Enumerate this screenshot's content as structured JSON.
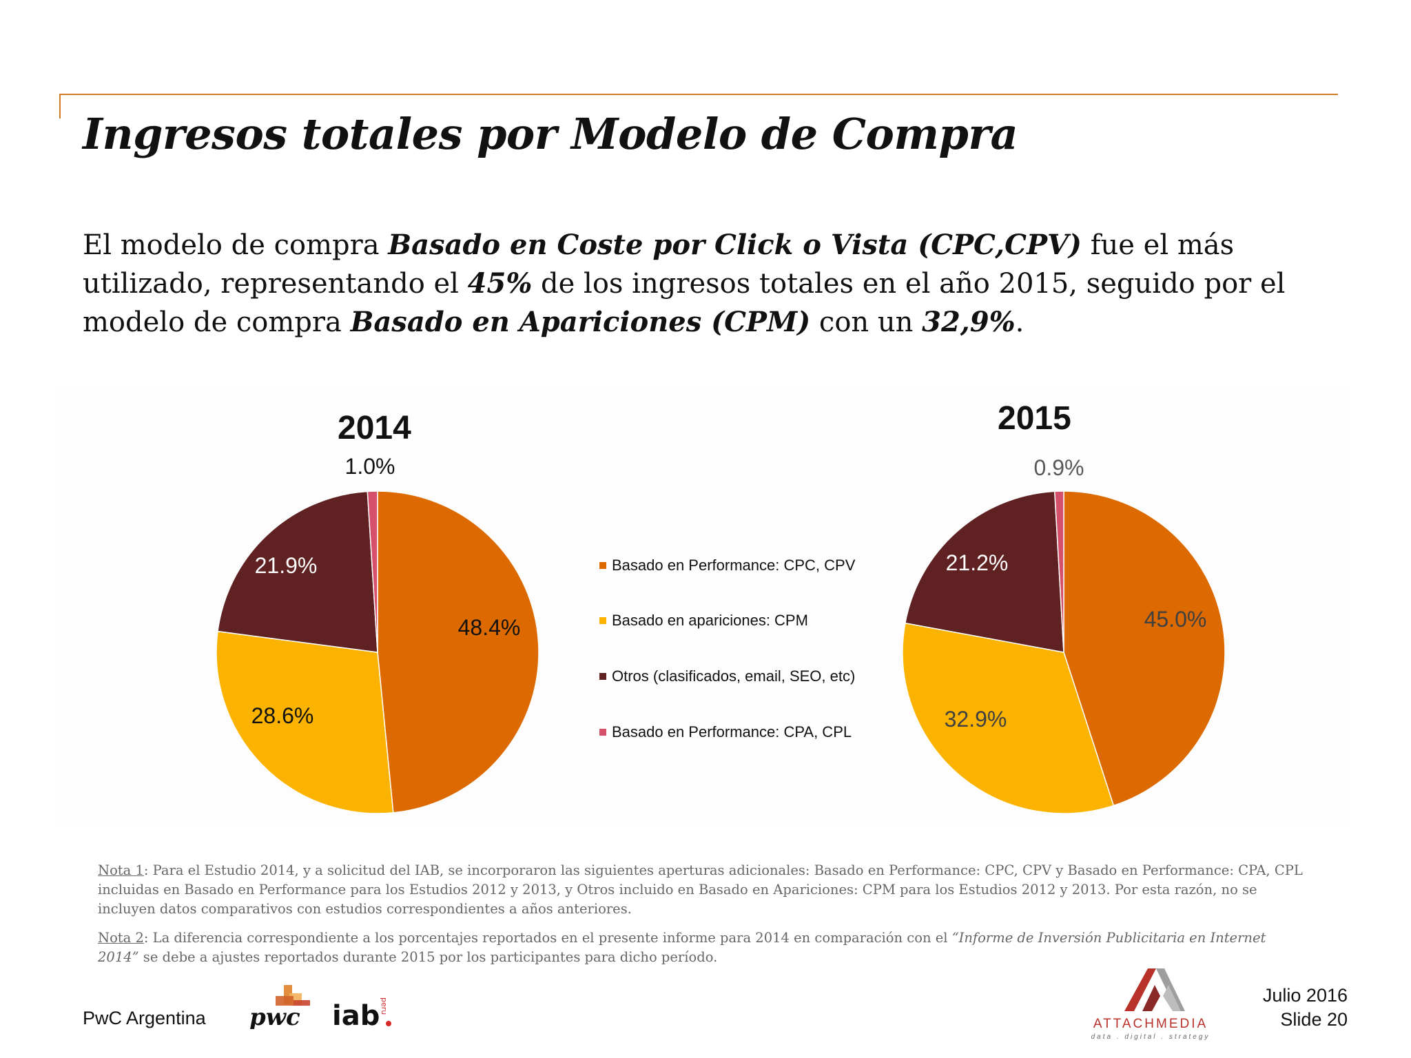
{
  "slide": {
    "title": "Ingresos totales por Modelo de Compra",
    "intro": {
      "t1": "El modelo de compra ",
      "b1": "Basado en Coste por Click o Vista (CPC,CPV)",
      "t2": " fue el más utilizado, representando el ",
      "b2": "45%",
      "t3": " de los ingresos totales en el año 2015, seguido por el modelo de compra ",
      "b3": "Basado en Apariciones (CPM)",
      "t4": " con un ",
      "b4": "32,9%",
      "t5": "."
    }
  },
  "chart_data": [
    {
      "type": "pie",
      "title": "2014",
      "categories": [
        "Basado en Performance: CPC, CPV",
        "Basado en apariciones: CPM",
        "Otros (clasificados, email, SEO, etc)",
        "Basado en Performance: CPA, CPL"
      ],
      "values": [
        48.4,
        28.6,
        21.9,
        1.0
      ],
      "labels": [
        "48.4%",
        "28.6%",
        "21.9%",
        "1.0%"
      ],
      "colors": [
        "#dd6a00",
        "#fcb300",
        "#5f2121",
        "#d5506a"
      ],
      "label_colors": [
        "#111111",
        "#111111",
        "#ffffff",
        "#111111"
      ]
    },
    {
      "type": "pie",
      "title": "2015",
      "categories": [
        "Basado en Performance: CPC, CPV",
        "Basado en apariciones: CPM",
        "Otros (clasificados, email, SEO, etc)",
        "Basado en Performance: CPA, CPL"
      ],
      "values": [
        45.0,
        32.9,
        21.2,
        0.9
      ],
      "labels": [
        "45.0%",
        "32.9%",
        "21.2%",
        "0.9%"
      ],
      "colors": [
        "#dd6a00",
        "#fcb300",
        "#5f2121",
        "#d5506a"
      ],
      "label_colors": [
        "#404040",
        "#404040",
        "#ffffff",
        "#595959"
      ]
    }
  ],
  "legend": {
    "placement": "center",
    "items": [
      {
        "label": "Basado en Performance: CPC, CPV",
        "color": "#dd6a00"
      },
      {
        "label": "Basado en apariciones: CPM",
        "color": "#fcb300"
      },
      {
        "label": "Otros (clasificados, email, SEO, etc)",
        "color": "#5f2121"
      },
      {
        "label": "Basado en Performance: CPA, CPL",
        "color": "#d5506a"
      }
    ]
  },
  "notes": {
    "note1_label": "Nota 1",
    "note1_text": ": Para el Estudio 2014, y a solicitud del IAB, se incorporaron las siguientes aperturas adicionales: Basado en Performance: CPC, CPV y Basado en Performance: CPA, CPL incluidas en Basado en Performance para los Estudios 2012 y 2013, y Otros incluido en Basado en Apariciones: CPM para los Estudios 2012 y 2013. Por esta razón, no se incluyen datos comparativos con estudios correspondientes a años anteriores.",
    "note2_label": "Nota 2",
    "note2_text_a": ": La diferencia correspondiente a los porcentajes reportados en el presente informe para 2014 en comparación con el ",
    "note2_italic": "“Informe de Inversión Publicitaria en Internet 2014”",
    "note2_text_b": " se debe a ajustes reportados durante 2015 por los participantes para dicho período."
  },
  "footer": {
    "company": "PwC Argentina",
    "pwc_logo_text": "pwc",
    "iab_logo_text": "iab",
    "iab_logo_sub": "peru",
    "attach_logo_text": "ATTACHMEDIA",
    "attach_logo_tagline": "data . digital . strategy",
    "date": "Julio 2016",
    "slide": "Slide 20",
    "colors": {
      "pwc_orange": "#e0822a",
      "pwc_red": "#c8452c",
      "iab_red": "#d62a2a",
      "attach_red": "#b8322a"
    }
  }
}
